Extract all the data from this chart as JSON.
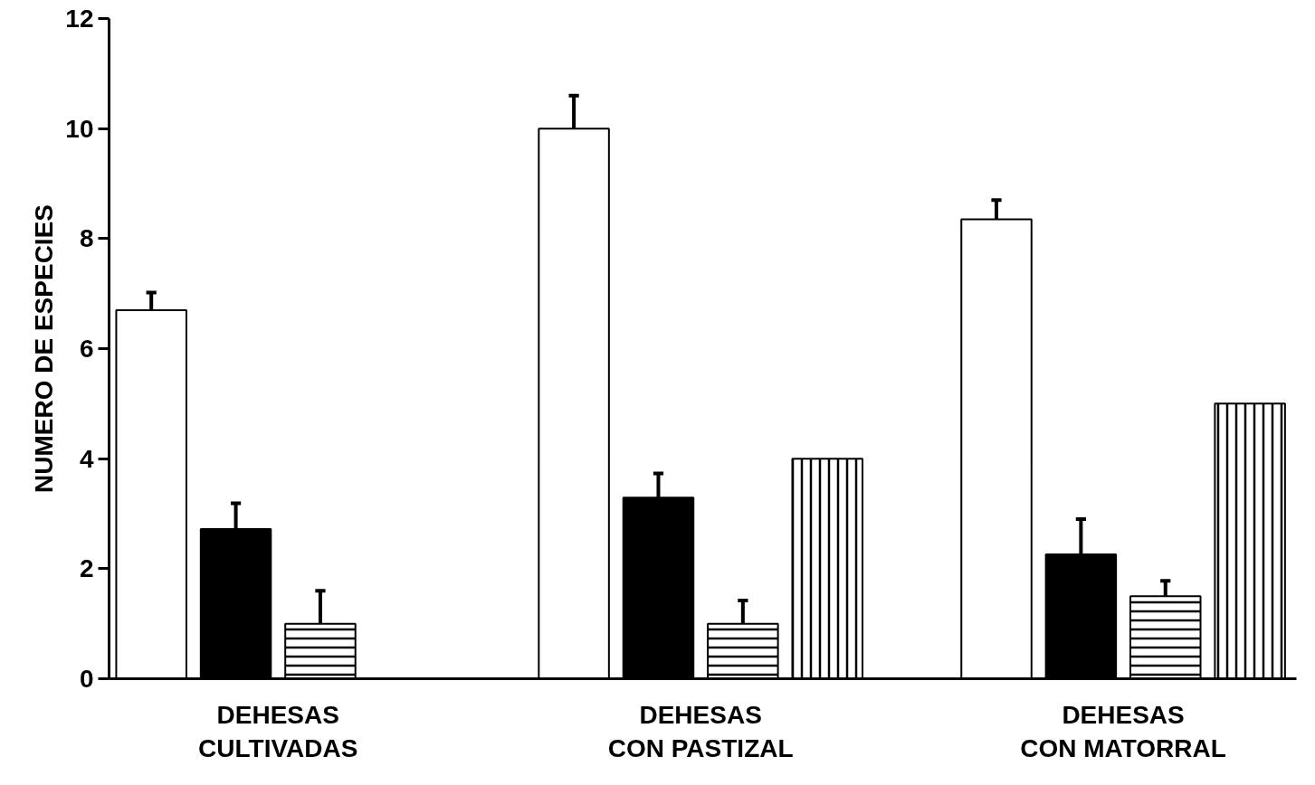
{
  "chart_data": {
    "type": "bar",
    "ylabel": "NUMERO DE ESPECIES",
    "categories": [
      "DEHESAS\nCULTIVADAS",
      "DEHESAS\nCON PASTIZAL",
      "DEHESAS\nCON MATORRAL"
    ],
    "series": [
      {
        "color": "#ffffff",
        "values": [
          6.7,
          10.0,
          8.35
        ],
        "errors": [
          [
            6.7,
            7.02
          ],
          [
            10.0,
            10.6
          ],
          [
            8.35,
            8.7
          ]
        ]
      },
      {
        "color": "#000000",
        "values": [
          2.72,
          3.29,
          2.26
        ],
        "errors": [
          [
            2.72,
            3.19
          ],
          [
            3.29,
            3.73
          ],
          [
            2.26,
            2.9
          ]
        ]
      },
      {
        "color": "#ffffff",
        "values": [
          1.0,
          1.0,
          1.5
        ],
        "errors": [
          [
            1.0,
            1.6
          ],
          [
            1.0,
            1.42
          ],
          [
            1.5,
            1.78
          ]
        ]
      },
      {
        "color": "#ffffff",
        "values": [
          null,
          4.0,
          5.0
        ]
      }
    ],
    "ylim": [
      0,
      12
    ],
    "yticks": [
      0,
      2,
      4,
      6,
      8,
      10,
      12
    ],
    "grid": false
  }
}
